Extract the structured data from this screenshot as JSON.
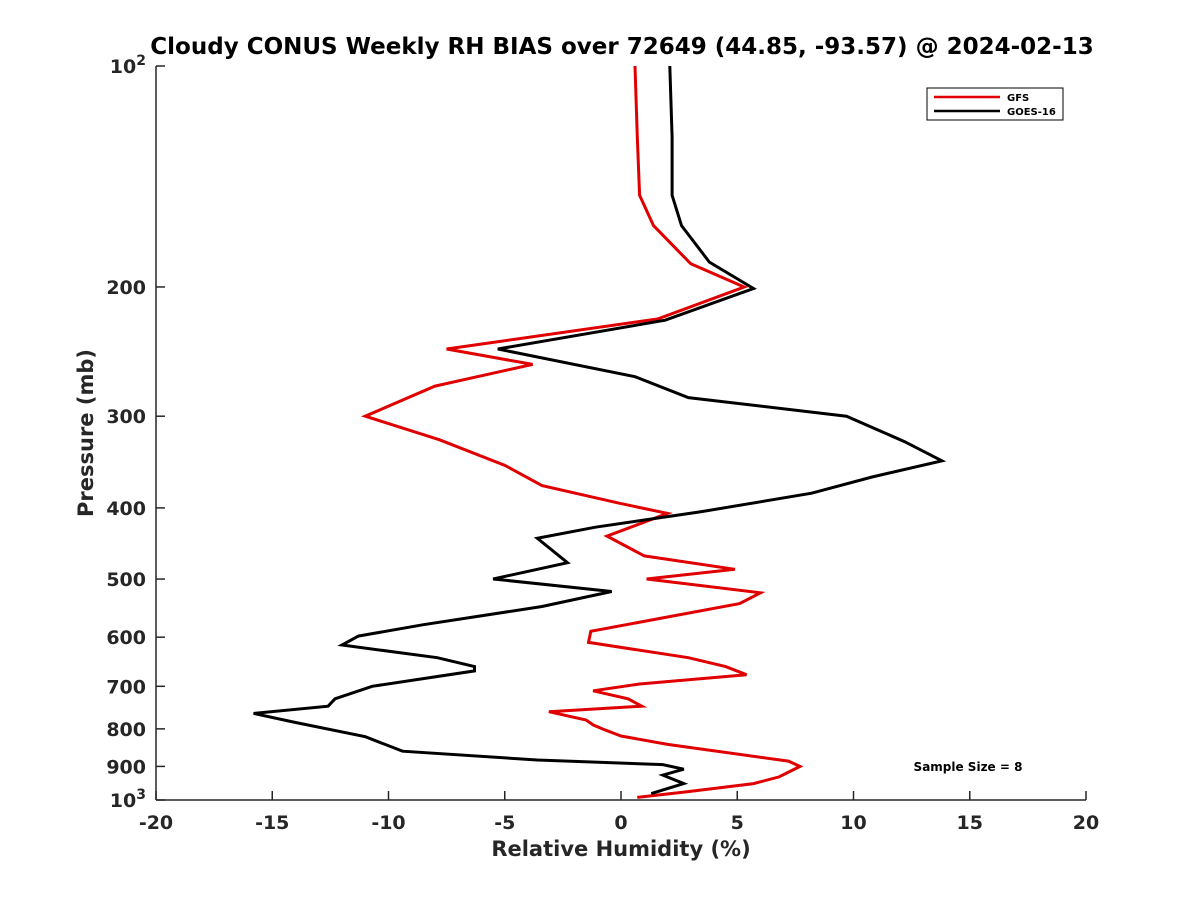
{
  "chart_data": {
    "type": "line",
    "title": "Cloudy CONUS Weekly RH BIAS over 72649 (44.85, -93.57) @ 2024-02-13",
    "xlabel": "Relative Humidity (%)",
    "ylabel": "Pressure (mb)",
    "xlim": [
      -20,
      20
    ],
    "ylim": [
      100,
      1000
    ],
    "y_scale": "log",
    "y_reversed": true,
    "grid": false,
    "legend_position": "top-right",
    "x_ticks": [
      {
        "value": -20,
        "label": "-20"
      },
      {
        "value": -15,
        "label": "-15"
      },
      {
        "value": -10,
        "label": "-10"
      },
      {
        "value": -5,
        "label": "-5"
      },
      {
        "value": 0,
        "label": "0"
      },
      {
        "value": 5,
        "label": "5"
      },
      {
        "value": 10,
        "label": "10"
      },
      {
        "value": 15,
        "label": "15"
      },
      {
        "value": 20,
        "label": "20"
      }
    ],
    "y_ticks": [
      {
        "value": 100,
        "label": "10",
        "exp": "2"
      },
      {
        "value": 200,
        "label": "200"
      },
      {
        "value": 300,
        "label": "300"
      },
      {
        "value": 400,
        "label": "400"
      },
      {
        "value": 500,
        "label": "500"
      },
      {
        "value": 600,
        "label": "600"
      },
      {
        "value": 700,
        "label": "700"
      },
      {
        "value": 800,
        "label": "800"
      },
      {
        "value": 900,
        "label": "900"
      },
      {
        "value": 1000,
        "label": "10",
        "exp": "3"
      }
    ],
    "annotation": "Sample Size = 8",
    "series": [
      {
        "name": "GFS",
        "color": "#e00000",
        "points": [
          [
            0.6,
            100
          ],
          [
            0.7,
            125
          ],
          [
            0.8,
            150
          ],
          [
            1.4,
            165
          ],
          [
            3.0,
            186
          ],
          [
            5.3,
            200
          ],
          [
            1.6,
            221
          ],
          [
            -7.5,
            243
          ],
          [
            -3.8,
            255
          ],
          [
            -8.0,
            273
          ],
          [
            -11.0,
            300
          ],
          [
            -7.8,
            323
          ],
          [
            -5.0,
            350
          ],
          [
            -3.4,
            373
          ],
          [
            -0.1,
            394
          ],
          [
            2.0,
            407
          ],
          [
            -0.6,
            437
          ],
          [
            1.0,
            465
          ],
          [
            4.9,
            485
          ],
          [
            1.1,
            500
          ],
          [
            6.0,
            522
          ],
          [
            5.1,
            540
          ],
          [
            -1.3,
            589
          ],
          [
            -1.4,
            610
          ],
          [
            2.9,
            640
          ],
          [
            4.5,
            658
          ],
          [
            5.4,
            675
          ],
          [
            0.8,
            695
          ],
          [
            -1.2,
            710
          ],
          [
            0.3,
            728
          ],
          [
            0.9,
            745
          ],
          [
            -3.1,
            758
          ],
          [
            -1.5,
            778
          ],
          [
            -1.2,
            790
          ],
          [
            -0.8,
            800
          ],
          [
            0.0,
            818
          ],
          [
            2.0,
            840
          ],
          [
            7.2,
            885
          ],
          [
            7.7,
            900
          ],
          [
            6.8,
            930
          ],
          [
            5.7,
            950
          ],
          [
            2.8,
            975
          ],
          [
            0.7,
            992
          ]
        ]
      },
      {
        "name": "GOES-16",
        "color": "#000000",
        "points": [
          [
            2.1,
            100
          ],
          [
            2.2,
            125
          ],
          [
            2.2,
            150
          ],
          [
            2.6,
            165
          ],
          [
            3.8,
            185
          ],
          [
            5.7,
            201
          ],
          [
            1.9,
            222
          ],
          [
            -5.3,
            243
          ],
          [
            0.6,
            265
          ],
          [
            2.9,
            283
          ],
          [
            9.7,
            300
          ],
          [
            12.2,
            325
          ],
          [
            13.8,
            345
          ],
          [
            10.8,
            363
          ],
          [
            8.2,
            382
          ],
          [
            3.4,
            405
          ],
          [
            -1.1,
            425
          ],
          [
            -3.6,
            440
          ],
          [
            -2.3,
            475
          ],
          [
            -5.5,
            500
          ],
          [
            -0.4,
            520
          ],
          [
            -3.4,
            545
          ],
          [
            -8.5,
            577
          ],
          [
            -11.3,
            598
          ],
          [
            -12.0,
            615
          ],
          [
            -7.9,
            640
          ],
          [
            -6.3,
            658
          ],
          [
            -6.3,
            667
          ],
          [
            -10.7,
            700
          ],
          [
            -12.3,
            728
          ],
          [
            -12.6,
            745
          ],
          [
            -15.8,
            762
          ],
          [
            -14.1,
            783
          ],
          [
            -11.0,
            820
          ],
          [
            -9.4,
            858
          ],
          [
            -3.6,
            882
          ],
          [
            1.8,
            895
          ],
          [
            2.7,
            908
          ],
          [
            1.8,
            925
          ],
          [
            2.7,
            950
          ],
          [
            1.3,
            980
          ]
        ]
      }
    ]
  }
}
